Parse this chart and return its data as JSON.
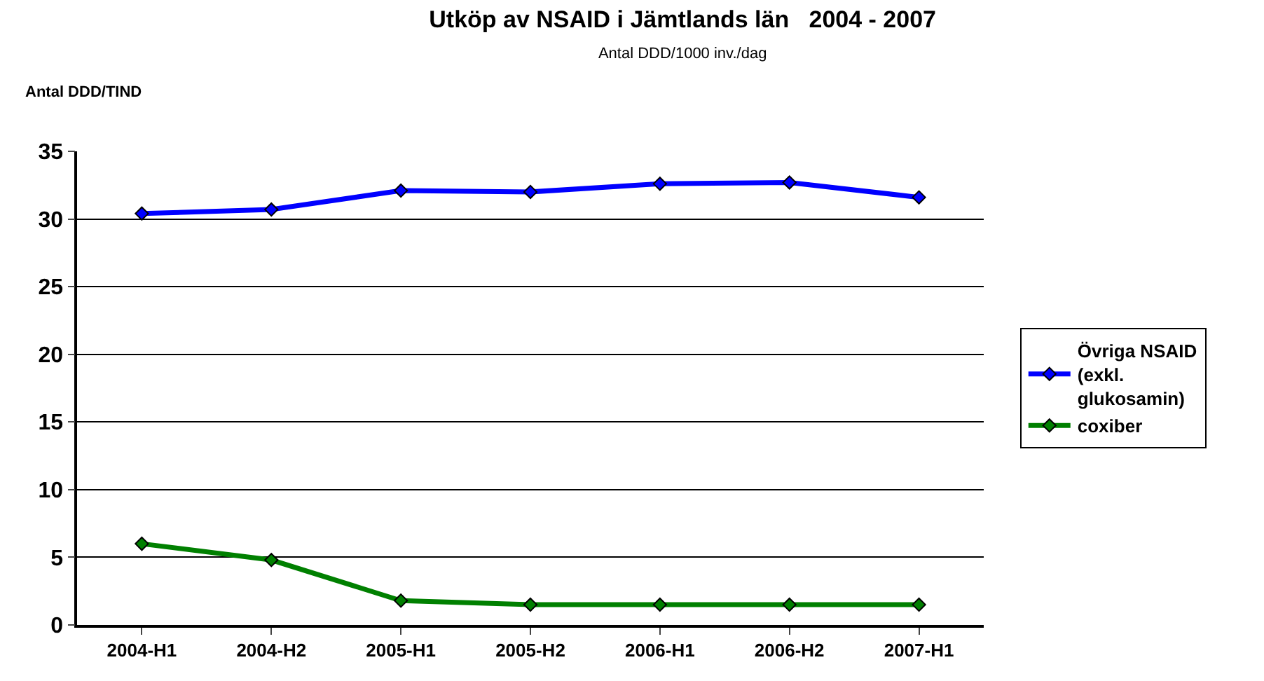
{
  "chart_data": {
    "type": "line",
    "title": "Utköp av NSAID i Jämtlands län   2004 - 2007",
    "subtitle": "Antal DDD/1000 inv./dag",
    "ylabel": "Antal DDD/TIND",
    "categories": [
      "2004-H1",
      "2004-H2",
      "2005-H1",
      "2005-H2",
      "2006-H1",
      "2006-H2",
      "2007-H1"
    ],
    "series": [
      {
        "name": "Övriga NSAID (exkl. glukosamin)",
        "color": "#0000ff",
        "values": [
          30.4,
          30.7,
          32.1,
          32.0,
          32.6,
          32.7,
          31.6
        ]
      },
      {
        "name": "coxiber",
        "color": "#008000",
        "values": [
          6.0,
          4.8,
          1.8,
          1.5,
          1.5,
          1.5,
          1.5
        ]
      }
    ],
    "ylim": [
      0,
      35
    ],
    "yticks": [
      0,
      5,
      10,
      15,
      20,
      25,
      30,
      35
    ],
    "grid": "y",
    "legend": "right",
    "marker": "diamond",
    "line_style": "solid"
  }
}
